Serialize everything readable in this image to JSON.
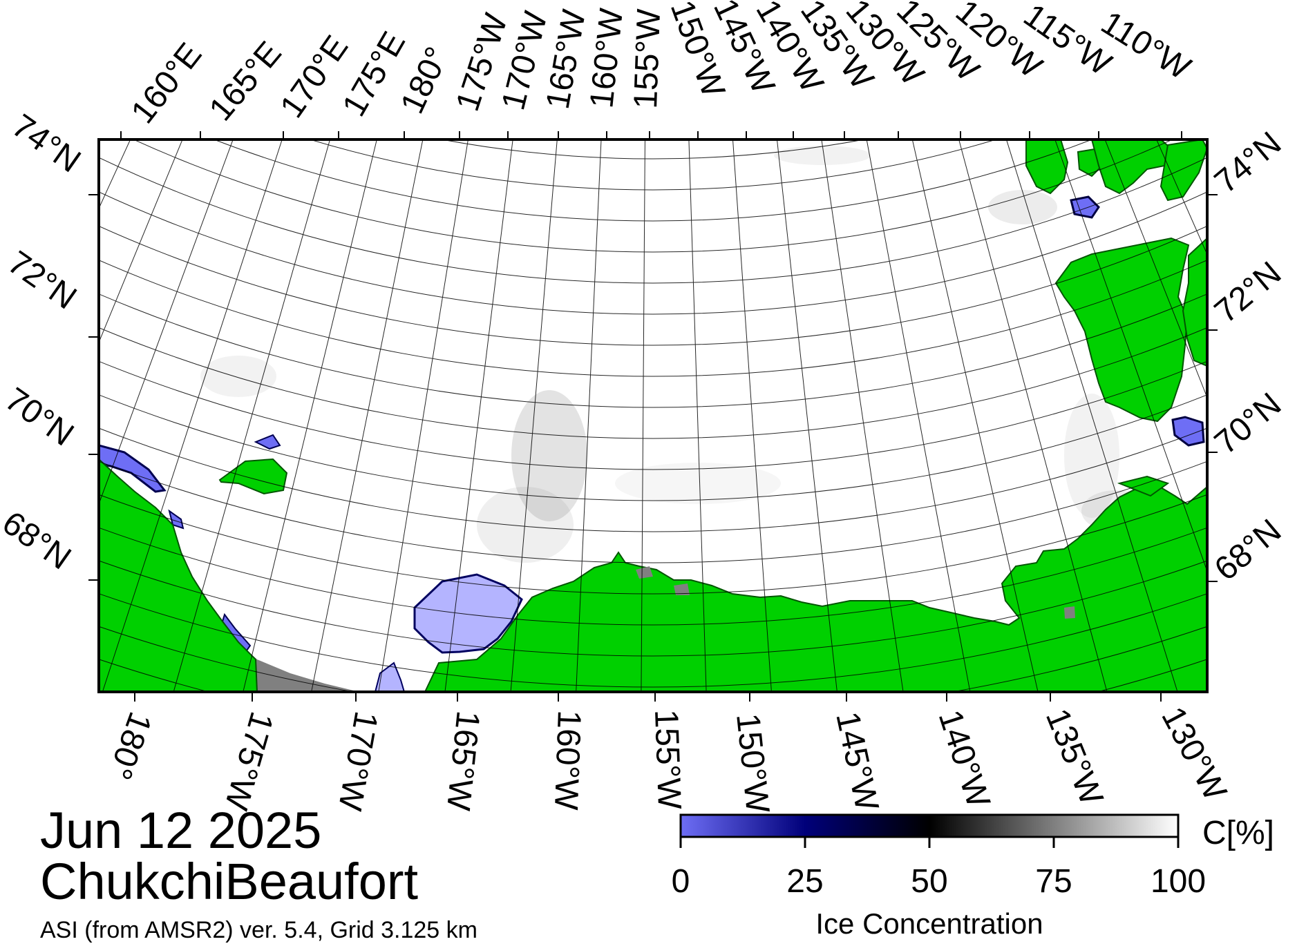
{
  "map": {
    "date": "Jun 12 2025",
    "region": "ChukchiBeaufort",
    "product": "ASI (from AMSR2) ver. 5.4,  Grid 3.125 km"
  },
  "top_labels": [
    "160°E",
    "165°E",
    "170°E",
    "175°E",
    "180°",
    "175°W",
    "170°W",
    "165°W",
    "160°W",
    "155°W",
    "150°W",
    "145°W",
    "140°W",
    "135°W",
    "130°W",
    "125°W",
    "120°W",
    "115°W",
    "110°W"
  ],
  "bottom_labels": [
    "180°",
    "175°W",
    "170°W",
    "165°W",
    "160°W",
    "155°W",
    "150°W",
    "145°W",
    "140°W",
    "135°W",
    "130°W"
  ],
  "left_labels": [
    "74°N",
    "72°N",
    "70°N",
    "68°N"
  ],
  "right_labels": [
    "74°N",
    "72°N",
    "70°N",
    "68°N"
  ],
  "colorbar": {
    "unit": "C[%]",
    "title": "Ice Concentration",
    "ticks": [
      "0",
      "25",
      "50",
      "75",
      "100"
    ],
    "stops": [
      "#6e6ef5",
      "#00007a",
      "#000000",
      "#7f7f7f",
      "#ffffff"
    ]
  },
  "colors": {
    "land": "#00d000",
    "open_water": "#b4b4ff",
    "no_data": "#808080",
    "ice_low": "#6e6ef5",
    "grid": "#000000"
  }
}
